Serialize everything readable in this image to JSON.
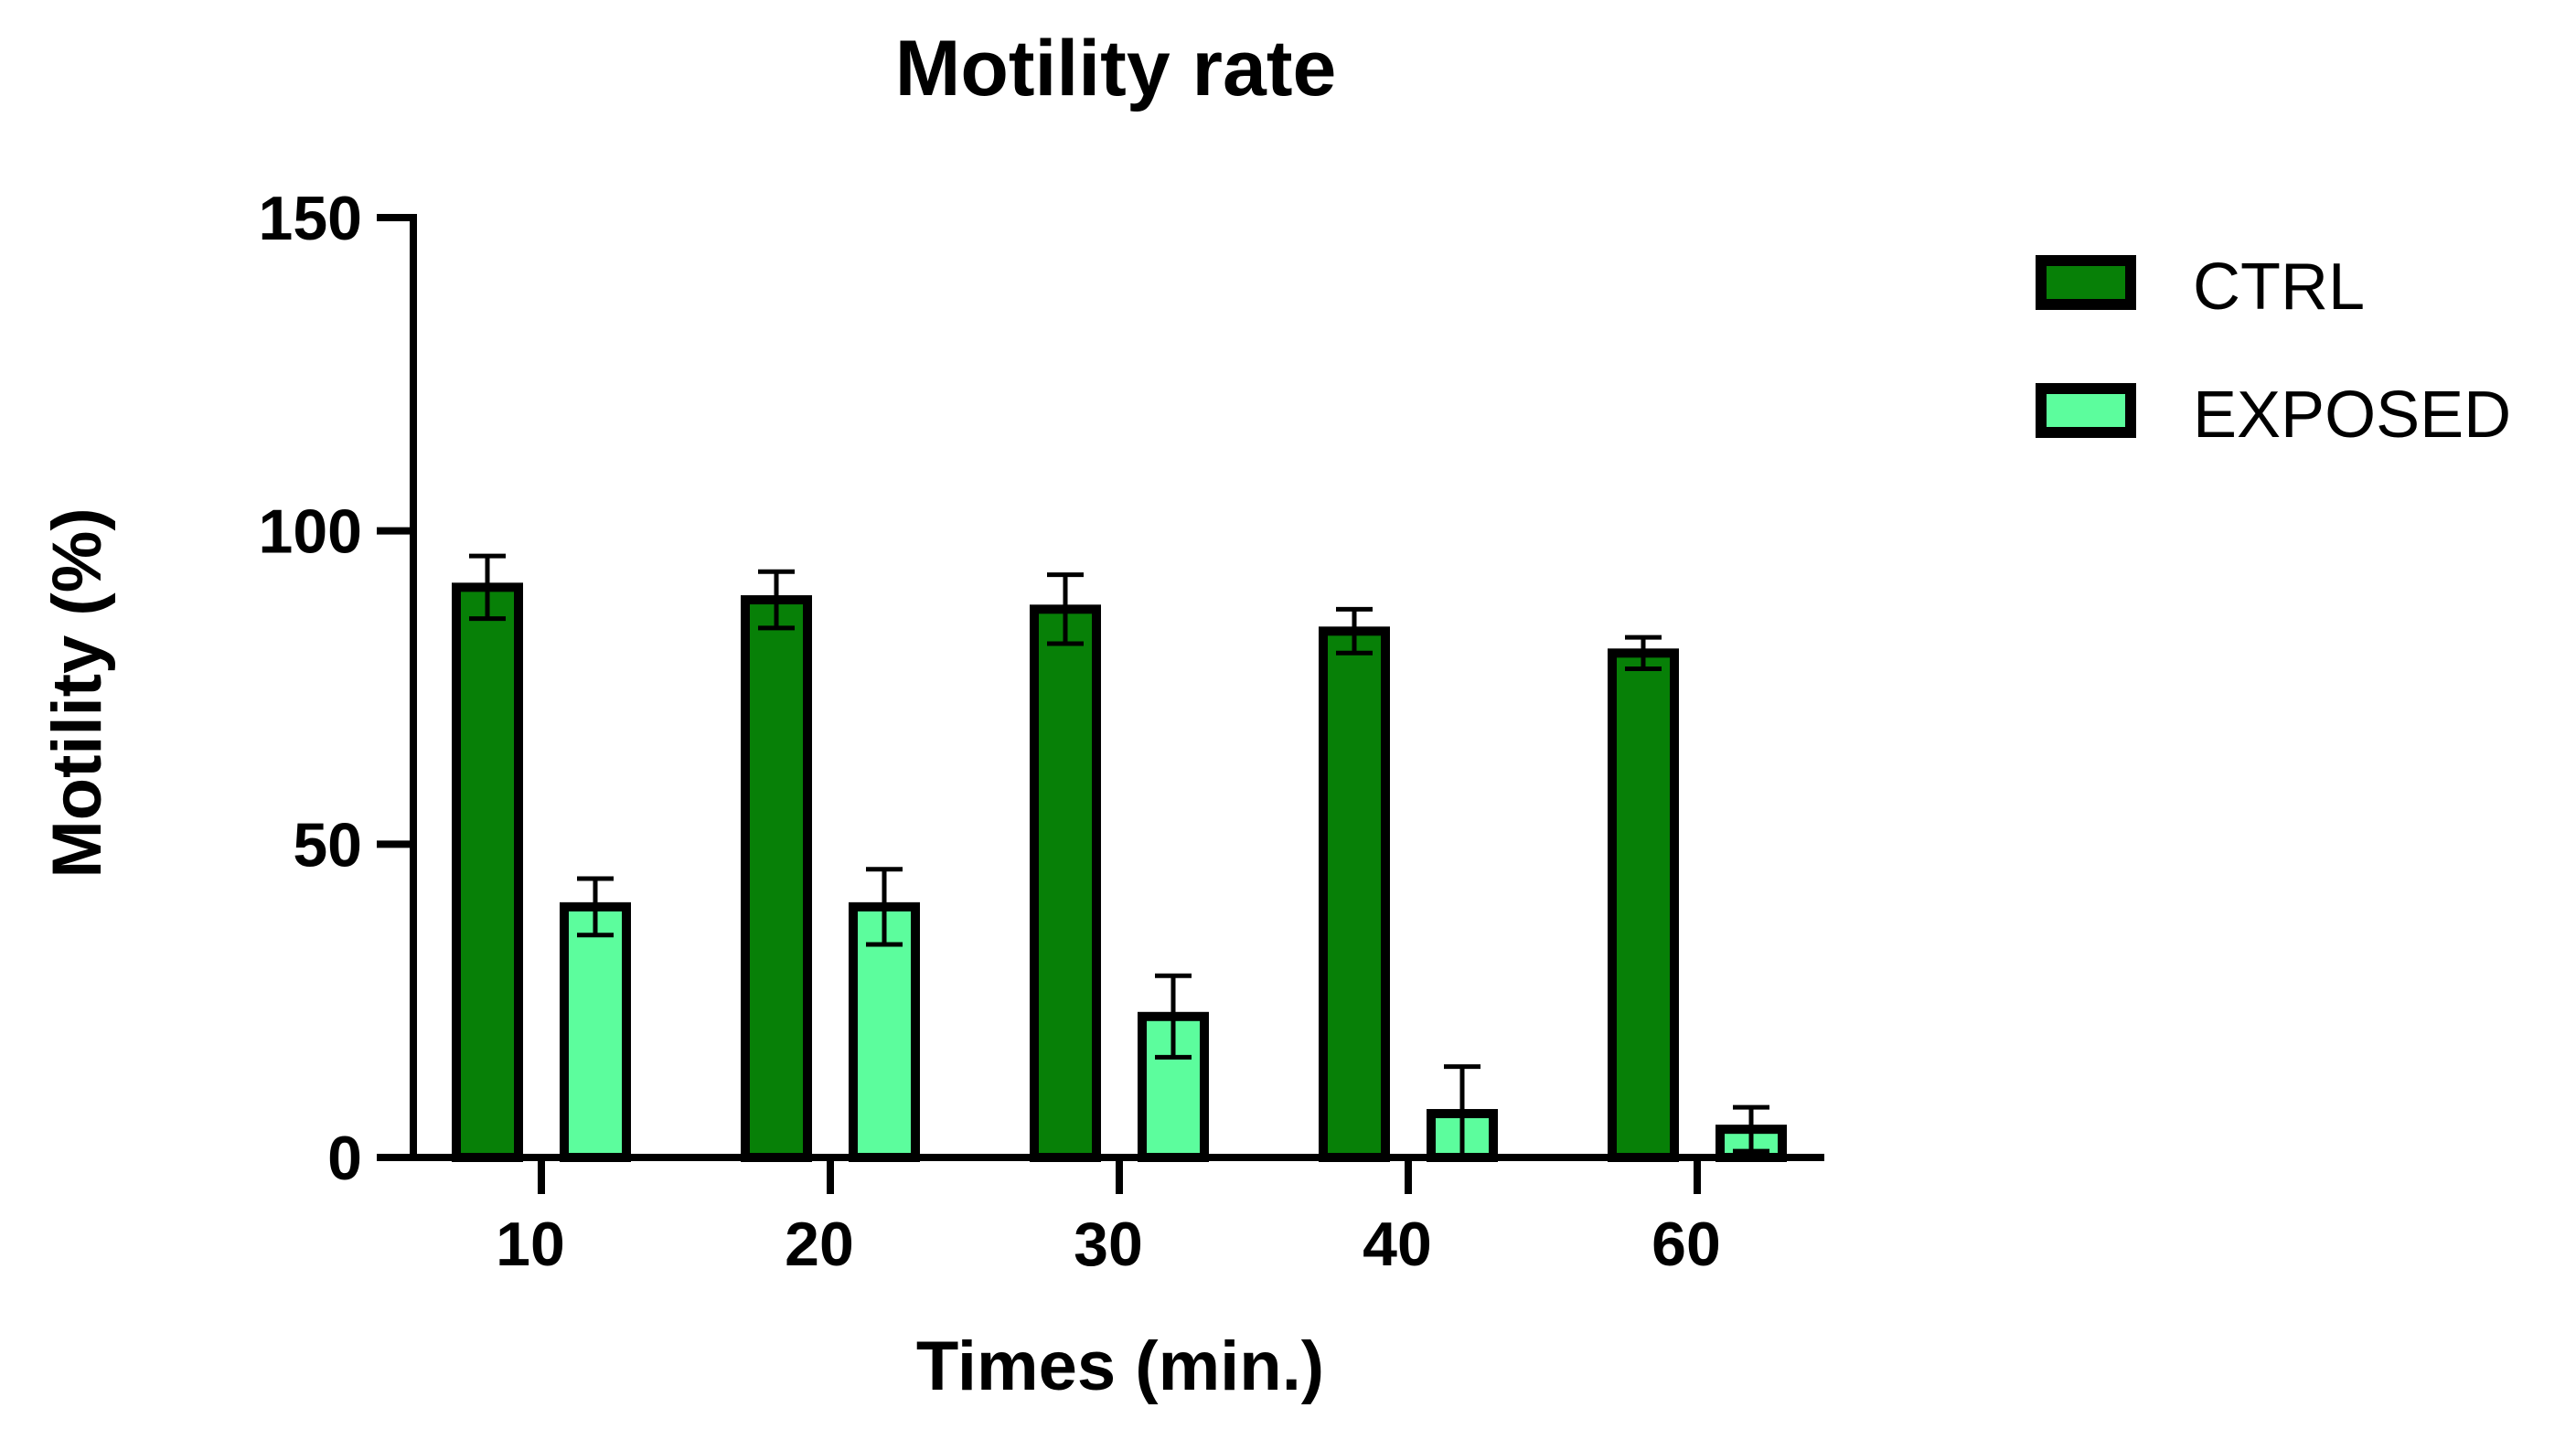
{
  "chart_data": {
    "type": "bar",
    "title": "Motility rate",
    "xlabel": "Times (min.)",
    "ylabel": "Motility (%)",
    "categories": [
      "10",
      "20",
      "30",
      "40",
      "60"
    ],
    "ylim": [
      0,
      150
    ],
    "yticks": [
      "0",
      "50",
      "100",
      "150"
    ],
    "grid": false,
    "legend_position": "top-right",
    "series": [
      {
        "name": "CTRL",
        "color": "#078007",
        "values": [
          91,
          89,
          87.5,
          84,
          80.5
        ],
        "errors": [
          5,
          4.5,
          5.5,
          3.5,
          2.5
        ]
      },
      {
        "name": "EXPOSED",
        "color": "#5cfd9d",
        "values": [
          40,
          40,
          22.5,
          7,
          4.5
        ],
        "errors": [
          4.5,
          6,
          6.5,
          7.5,
          3.5
        ]
      }
    ]
  }
}
